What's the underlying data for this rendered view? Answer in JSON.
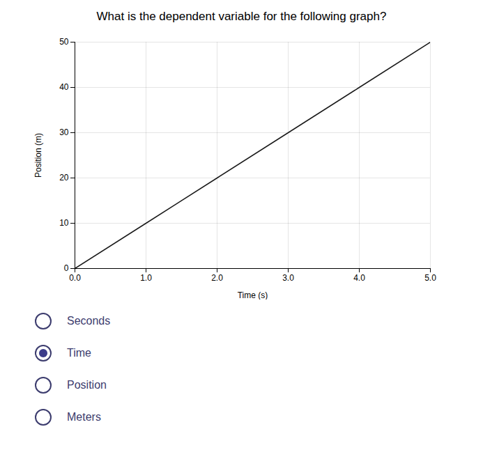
{
  "chart_data": {
    "type": "line",
    "title": "What is the dependent variable for the following graph?",
    "x_label": "Time (s)",
    "y_label": "Position (m)",
    "x": [
      0,
      1,
      2,
      3,
      4,
      5
    ],
    "values": [
      0,
      10,
      20,
      30,
      40,
      50
    ],
    "color": "#1a1a1a",
    "xlim": [
      0,
      5
    ],
    "ylim": [
      0,
      50
    ],
    "xticks": [
      0,
      1,
      2,
      3,
      4,
      5
    ],
    "yticks": [
      0,
      10,
      20,
      30,
      40,
      50
    ],
    "grid": true,
    "annotations": [
      {
        "text": "Seconds",
        "marker": "circle"
      },
      {
        "text": "Time",
        "marker": "filled_circle"
      },
      {
        "text": "Position",
        "marker": "circle"
      },
      {
        "text": "Meters",
        "marker": "circle"
      }
    ]
  }
}
